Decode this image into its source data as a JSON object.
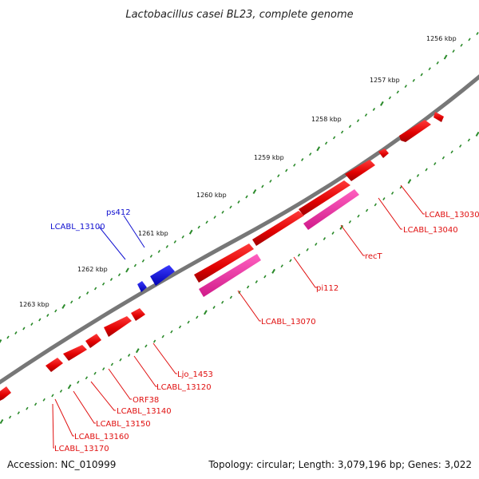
{
  "title": "Lactobacillus casei BL23, complete genome",
  "footer": {
    "accession": "Accession: NC_010999",
    "topology": "Topology: circular; Length: 3,079,196 bp; Genes: 3,022"
  },
  "scale_labels": [
    "1256 kbp",
    "1257 kbp",
    "1258 kbp",
    "1259 kbp",
    "1260 kbp",
    "1261 kbp",
    "1262 kbp",
    "1263 kbp"
  ],
  "gene_labels": {
    "ps412": "ps412",
    "lcabl_13100": "LCABL_13100",
    "lcabl_13030": "LCABL_13030",
    "lcabl_13040": "LCABL_13040",
    "recT": "recT",
    "pi112": "pi112",
    "lcabl_13070": "LCABL_13070",
    "ljo_1453": "Ljo_1453",
    "lcabl_13120": "LCABL_13120",
    "orf38": "ORF38",
    "lcabl_13140": "LCABL_13140",
    "lcabl_13150": "LCABL_13150",
    "lcabl_13160": "LCABL_13160",
    "lcabl_13170": "LCABL_13170"
  },
  "colors": {
    "backbone": "#777777",
    "gene_red": "#ee0000",
    "gene_pink": "#ee2aa0",
    "gene_blue": "#1010e0",
    "tick_green": "#2a8a2a",
    "label_red": "#e01010",
    "label_blue": "#1010d0"
  }
}
